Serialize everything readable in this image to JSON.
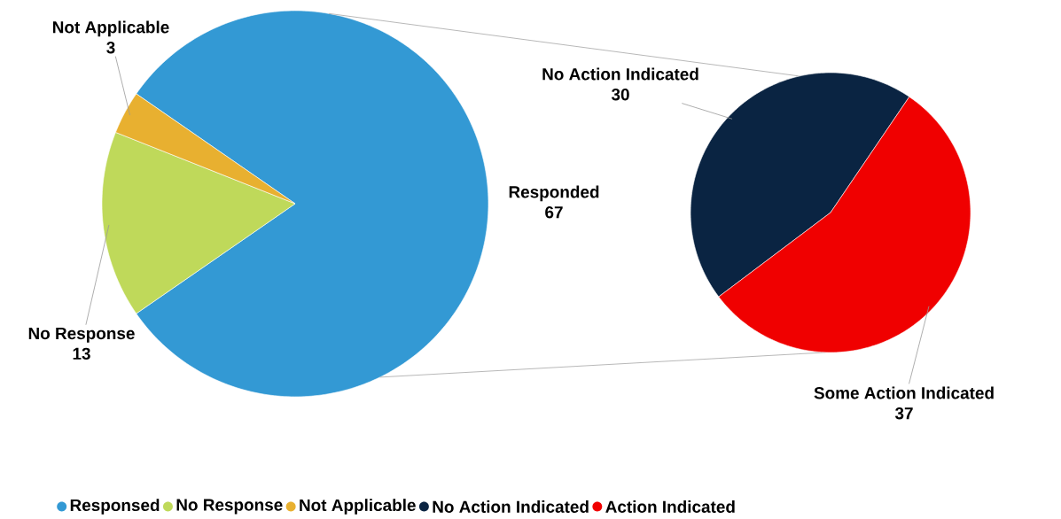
{
  "chart_data": [
    {
      "type": "pie",
      "categories": [
        "Responsed",
        "No Response",
        "Not Applicable"
      ],
      "values": [
        67,
        13,
        3
      ],
      "colors": [
        "#3399d4",
        "#bfd95a",
        "#e8b030"
      ],
      "annotations": [
        "Responded",
        "No Response",
        "Not Applicable"
      ],
      "data_labels": true,
      "legend": "bottom"
    },
    {
      "type": "pie",
      "categories": [
        "No Action Indicated",
        "Action Indicated"
      ],
      "values": [
        30,
        37
      ],
      "colors": [
        "#0a2442",
        "#f00000"
      ],
      "annotations": [
        "No Action Indicated",
        "Some Action Indicated"
      ],
      "data_labels": true,
      "legend": "bottom"
    }
  ]
}
